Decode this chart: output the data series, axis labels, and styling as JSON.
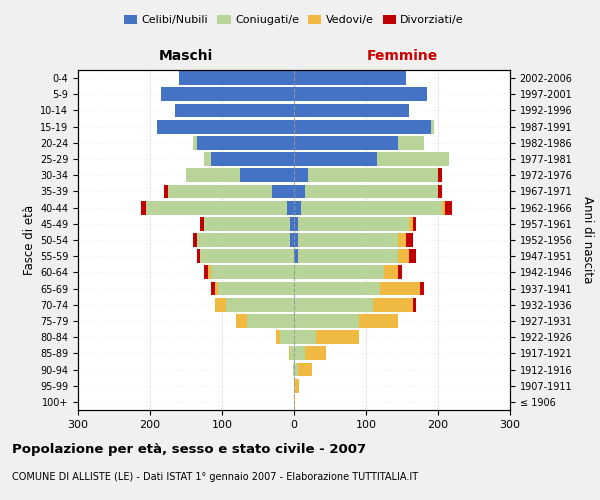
{
  "age_groups": [
    "100+",
    "95-99",
    "90-94",
    "85-89",
    "80-84",
    "75-79",
    "70-74",
    "65-69",
    "60-64",
    "55-59",
    "50-54",
    "45-49",
    "40-44",
    "35-39",
    "30-34",
    "25-29",
    "20-24",
    "15-19",
    "10-14",
    "5-9",
    "0-4"
  ],
  "birth_years": [
    "≤ 1906",
    "1907-1911",
    "1912-1916",
    "1917-1921",
    "1922-1926",
    "1927-1931",
    "1932-1936",
    "1937-1941",
    "1942-1946",
    "1947-1951",
    "1952-1956",
    "1957-1961",
    "1962-1966",
    "1967-1971",
    "1972-1976",
    "1977-1981",
    "1982-1986",
    "1987-1991",
    "1992-1996",
    "1997-2001",
    "2002-2006"
  ],
  "male": {
    "celibe": [
      0,
      0,
      0,
      0,
      0,
      0,
      0,
      0,
      0,
      0,
      5,
      5,
      10,
      30,
      75,
      115,
      135,
      190,
      165,
      185,
      160
    ],
    "coniugato": [
      0,
      0,
      2,
      5,
      20,
      65,
      95,
      105,
      115,
      130,
      130,
      120,
      195,
      145,
      75,
      10,
      5,
      0,
      0,
      0,
      0
    ],
    "vedovo": [
      0,
      0,
      0,
      2,
      5,
      15,
      15,
      5,
      5,
      0,
      0,
      0,
      0,
      0,
      0,
      0,
      0,
      0,
      0,
      0,
      0
    ],
    "divorziato": [
      0,
      0,
      0,
      0,
      0,
      0,
      0,
      5,
      5,
      5,
      5,
      5,
      8,
      5,
      0,
      0,
      0,
      0,
      0,
      0,
      0
    ]
  },
  "female": {
    "nubile": [
      0,
      0,
      0,
      0,
      0,
      0,
      0,
      0,
      0,
      5,
      5,
      5,
      10,
      15,
      20,
      115,
      145,
      190,
      160,
      185,
      155
    ],
    "coniugata": [
      0,
      2,
      5,
      15,
      30,
      90,
      110,
      120,
      125,
      140,
      140,
      155,
      195,
      185,
      180,
      100,
      35,
      5,
      0,
      0,
      0
    ],
    "vedova": [
      2,
      5,
      20,
      30,
      60,
      55,
      55,
      55,
      20,
      15,
      10,
      5,
      5,
      0,
      0,
      0,
      0,
      0,
      0,
      0,
      0
    ],
    "divorziata": [
      0,
      0,
      0,
      0,
      0,
      0,
      5,
      5,
      5,
      10,
      10,
      5,
      10,
      5,
      5,
      0,
      0,
      0,
      0,
      0,
      0
    ]
  },
  "colors": {
    "celibe": "#4472C4",
    "coniugato": "#b8d499",
    "vedovo": "#f0b942",
    "divorziato": "#c00000"
  },
  "xlim": 300,
  "title": "Popolazione per età, sesso e stato civile - 2007",
  "subtitle": "COMUNE DI ALLISTE (LE) - Dati ISTAT 1° gennaio 2007 - Elaborazione TUTTITALIA.IT",
  "ylabel_left": "Fasce di età",
  "ylabel_right": "Anni di nascita",
  "xlabel_left": "Maschi",
  "xlabel_right": "Femmine",
  "legend_labels": [
    "Celibi/Nubili",
    "Coniugati/e",
    "Vedovi/e",
    "Divorziati/e"
  ],
  "bg_color": "#f0f0f0",
  "bar_bg_color": "#ffffff"
}
